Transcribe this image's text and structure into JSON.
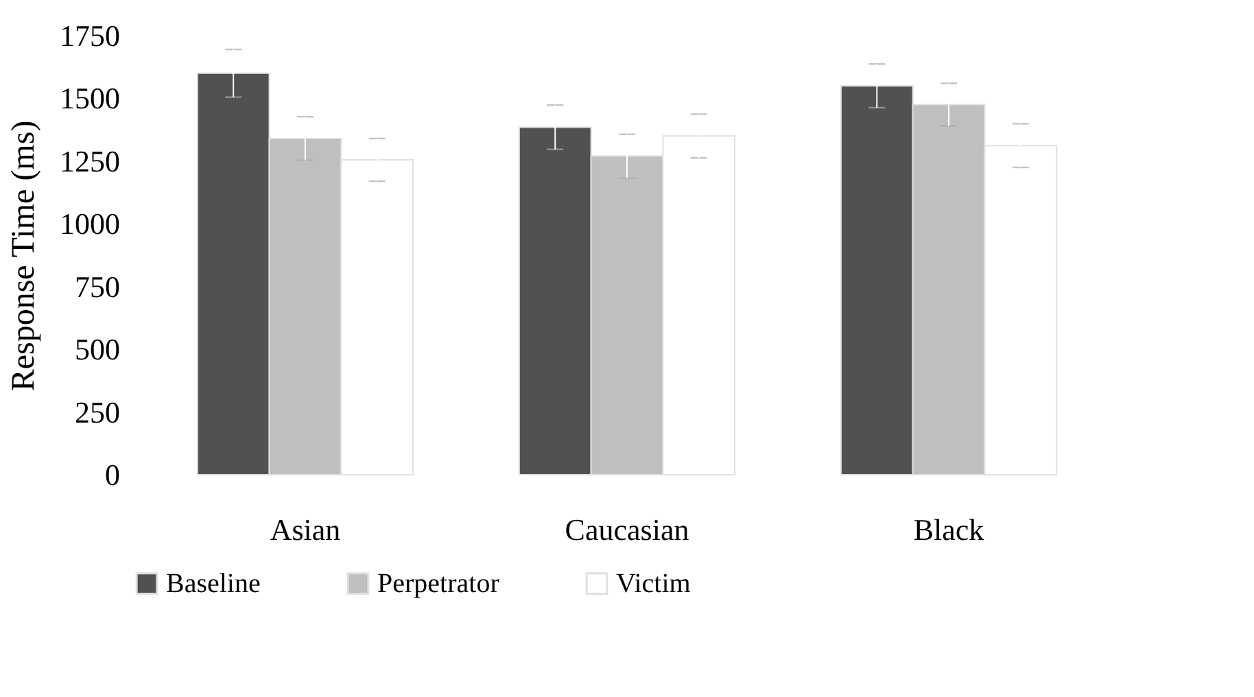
{
  "chart_data": {
    "type": "bar",
    "ylabel": "Response Time (ms)",
    "categories": [
      "Asian",
      "Caucasian",
      "Black"
    ],
    "series": [
      {
        "name": "Baseline",
        "color": "#515151",
        "values": [
          1600,
          1385,
          1550
        ],
        "errors": [
          95,
          88,
          87
        ]
      },
      {
        "name": "Perpetrator",
        "color": "#bfbfbf",
        "values": [
          1340,
          1270,
          1475
        ],
        "errors": [
          87,
          87,
          85
        ]
      },
      {
        "name": "Victim",
        "color": "#ffffff",
        "values": [
          1255,
          1350,
          1312
        ],
        "errors": [
          85,
          87,
          87
        ]
      }
    ],
    "ylim": [
      0,
      1750
    ],
    "yticks": [
      0,
      250,
      500,
      750,
      1000,
      1250,
      1500,
      1750
    ],
    "grid": false,
    "legend": "bottom"
  }
}
